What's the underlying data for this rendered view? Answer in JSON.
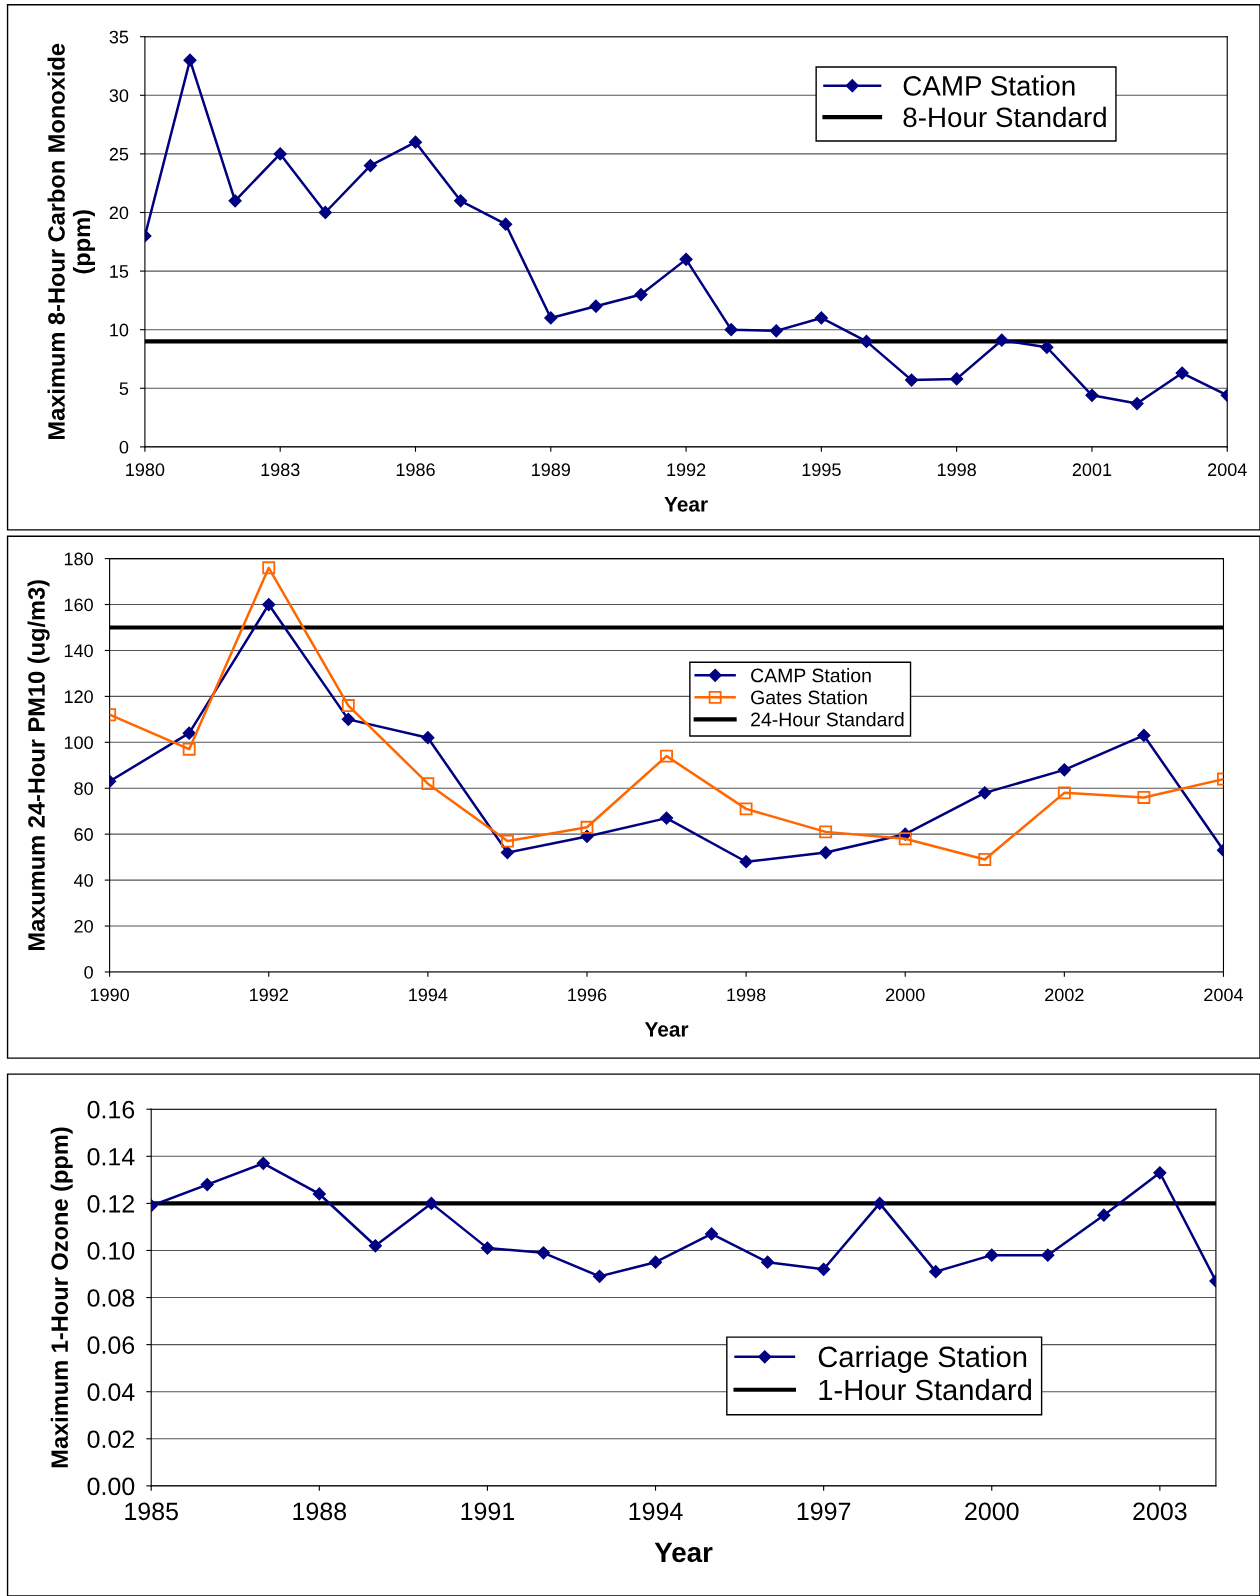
{
  "chart_data": [
    {
      "type": "line",
      "xlabel": "Year",
      "ylabel": "Maximum 8-Hour Carbon Monoxide\n(ppm)",
      "xlim": [
        1980,
        2004
      ],
      "xticks": [
        1980,
        1983,
        1986,
        1989,
        1992,
        1995,
        1998,
        2001,
        2004
      ],
      "ylim": [
        0,
        35
      ],
      "yticks": [
        0,
        5,
        10,
        15,
        20,
        25,
        30,
        35
      ],
      "grid": "y",
      "legend": "top right",
      "series": [
        {
          "name": "CAMP Station",
          "color": "#000080",
          "marker": "diamond",
          "x": [
            1980,
            1981,
            1982,
            1983,
            1984,
            1985,
            1986,
            1987,
            1988,
            1989,
            1990,
            1991,
            1992,
            1993,
            1994,
            1995,
            1996,
            1997,
            1998,
            1999,
            2000,
            2001,
            2002,
            2003,
            2004
          ],
          "values": [
            18,
            33,
            21,
            25,
            20,
            24,
            26,
            21,
            19,
            11,
            12,
            13,
            16,
            10,
            9.9,
            11,
            9,
            5.7,
            5.8,
            9.1,
            8.5,
            4.4,
            3.7,
            6.3,
            4.4
          ]
        },
        {
          "name": "8-Hour Standard",
          "color": "#000000",
          "marker": "none",
          "x": [
            1980,
            2004
          ],
          "values": [
            9,
            9
          ]
        }
      ]
    },
    {
      "type": "line",
      "xlabel": "Year",
      "ylabel": "Maxumum 24-Hour PM10 (ug/m3)",
      "xlim": [
        1990,
        2004
      ],
      "xticks": [
        1990,
        1992,
        1994,
        1996,
        1998,
        2000,
        2002,
        2004
      ],
      "ylim": [
        0,
        180
      ],
      "yticks": [
        0,
        20,
        40,
        60,
        80,
        100,
        120,
        140,
        160,
        180
      ],
      "grid": "y",
      "legend": "center",
      "series": [
        {
          "name": "CAMP Station",
          "color": "#000080",
          "marker": "diamond",
          "x": [
            1990,
            1991,
            1992,
            1993,
            1994,
            1995,
            1996,
            1997,
            1998,
            1999,
            2000,
            2001,
            2002,
            2003,
            2004
          ],
          "values": [
            83,
            104,
            160,
            110,
            102,
            52,
            59,
            67,
            48,
            52,
            60,
            78,
            88,
            103,
            53
          ]
        },
        {
          "name": "Gates Station",
          "color": "#ff6600",
          "marker": "square",
          "x": [
            1990,
            1991,
            1992,
            1993,
            1994,
            1995,
            1996,
            1997,
            1998,
            1999,
            2000,
            2001,
            2002,
            2003,
            2004
          ],
          "values": [
            112,
            97,
            176,
            116,
            82,
            57,
            63,
            94,
            71,
            61,
            58,
            49,
            78,
            76,
            84
          ]
        },
        {
          "name": "24-Hour Standard",
          "color": "#000000",
          "marker": "none",
          "x": [
            1990,
            2004
          ],
          "values": [
            150,
            150
          ]
        }
      ]
    },
    {
      "type": "line",
      "xlabel": "Year",
      "ylabel": "Maximum 1-Hour Ozone (ppm)",
      "xlim": [
        1985,
        2004
      ],
      "xticks": [
        1985,
        1988,
        1991,
        1994,
        1997,
        2000,
        2003
      ],
      "ylim": [
        0,
        0.16
      ],
      "yticks": [
        {
          "value": 0,
          "label": "0.00"
        },
        0.02,
        0.04,
        0.06,
        0.08,
        {
          "value": 0.1,
          "label": "0.10"
        },
        0.12,
        0.14,
        0.16
      ],
      "grid": "y",
      "legend": "bottom right",
      "series": [
        {
          "name": "Carriage Station",
          "color": "#000080",
          "marker": "diamond",
          "x": [
            1985,
            1986,
            1987,
            1988,
            1989,
            1990,
            1991,
            1992,
            1993,
            1994,
            1995,
            1996,
            1997,
            1998,
            1999,
            2000,
            2001,
            2002,
            2003,
            2004
          ],
          "values": [
            0.119,
            0.128,
            0.137,
            0.124,
            0.102,
            0.12,
            0.101,
            0.099,
            0.089,
            0.095,
            0.107,
            0.095,
            0.092,
            0.12,
            0.091,
            0.098,
            0.098,
            0.115,
            0.133,
            0.087
          ]
        },
        {
          "name": "1-Hour Standard",
          "color": "#000000",
          "marker": "none",
          "x": [
            1985,
            2004
          ],
          "values": [
            0.12,
            0.12
          ]
        }
      ]
    }
  ]
}
